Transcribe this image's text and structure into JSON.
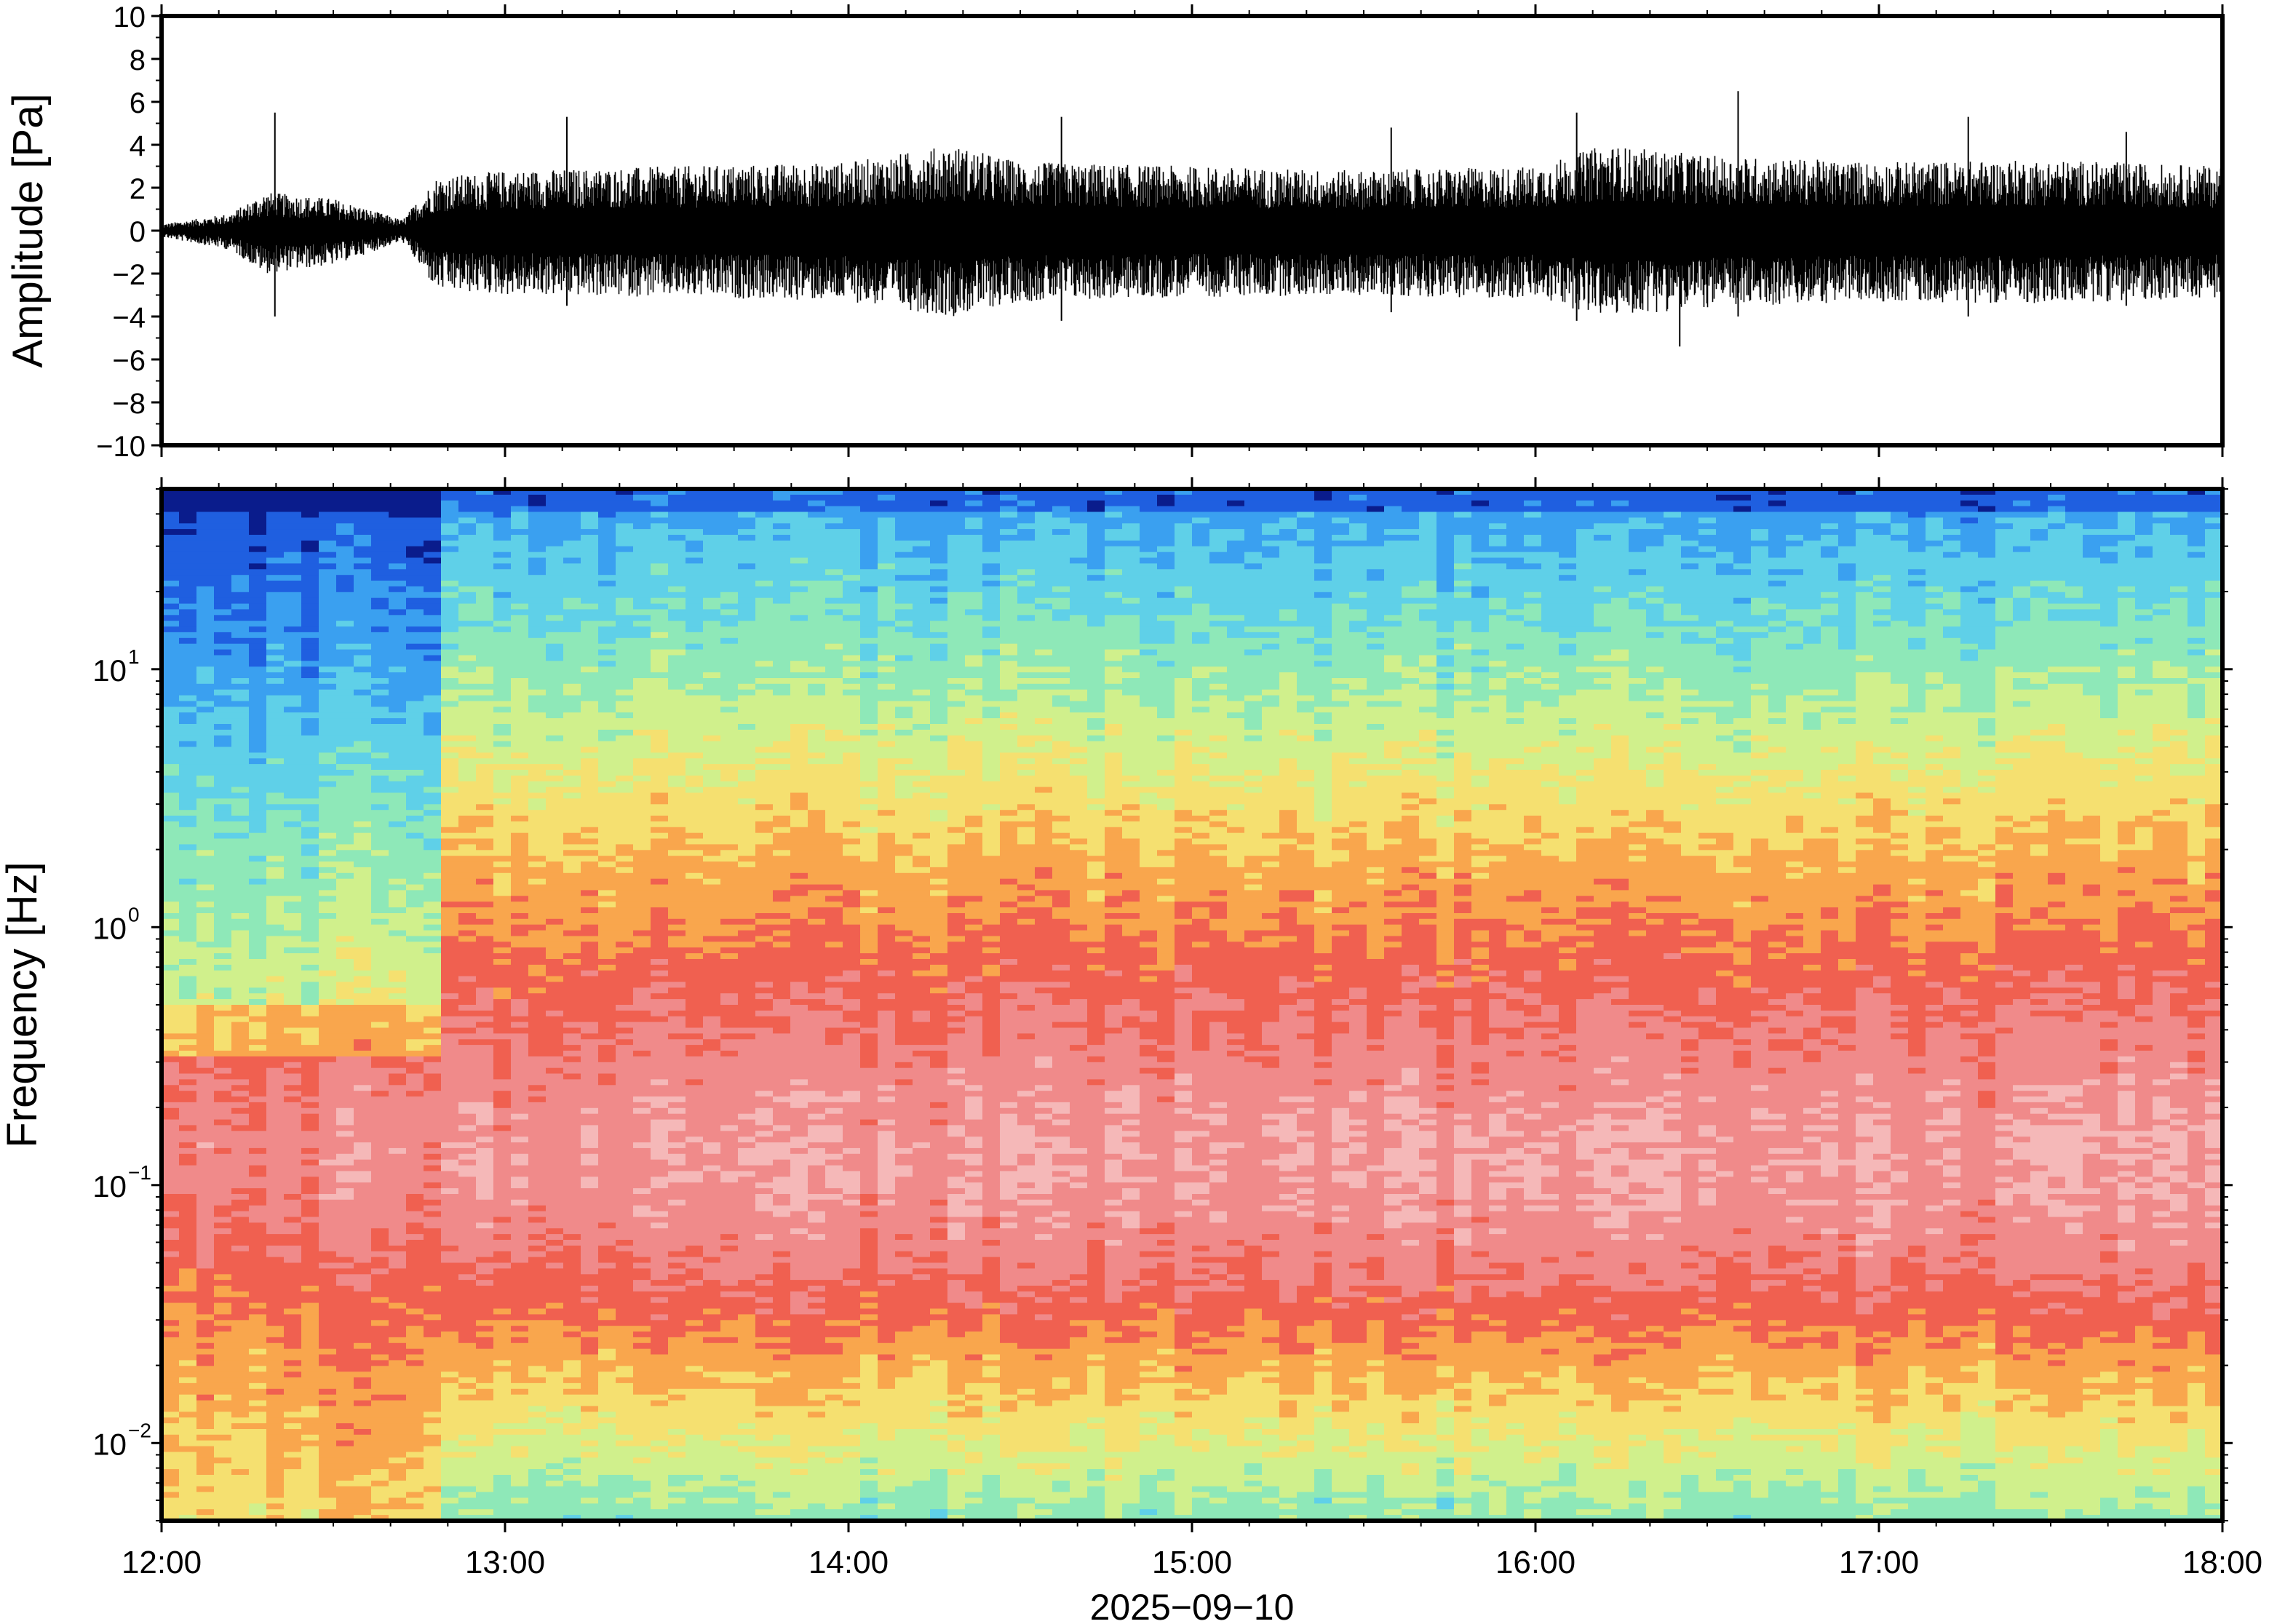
{
  "chart_data": [
    {
      "type": "line",
      "panel": "waveform",
      "ylabel": "Amplitude [Pa]",
      "ylim": [
        -10,
        10
      ],
      "yticks": [
        -10,
        -8,
        -6,
        -4,
        -2,
        0,
        2,
        4,
        6,
        8,
        10
      ],
      "ytick_labels": [
        "−10",
        "−8",
        "−6",
        "−4",
        "−2",
        "0",
        "2",
        "4",
        "6",
        "8",
        "10"
      ],
      "x_range_hours": [
        12,
        18
      ],
      "envelope": {
        "x_hours": [
          12.0,
          12.2,
          12.3,
          12.5,
          12.7,
          12.8,
          13.0,
          13.5,
          14.0,
          14.3,
          14.5,
          15.0,
          15.5,
          16.0,
          16.2,
          16.5,
          17.0,
          17.5,
          18.0
        ],
        "upper_pa": [
          0.3,
          0.8,
          1.8,
          1.5,
          0.5,
          2.5,
          2.8,
          3.0,
          3.2,
          4.0,
          3.2,
          3.0,
          2.8,
          3.0,
          4.0,
          3.5,
          3.2,
          3.3,
          3.0
        ],
        "lower_pa": [
          -0.3,
          -0.9,
          -2.0,
          -1.6,
          -0.5,
          -2.8,
          -3.0,
          -3.1,
          -3.3,
          -4.0,
          -3.3,
          -3.1,
          -3.0,
          -3.2,
          -4.0,
          -3.6,
          -3.3,
          -3.4,
          -3.1
        ]
      },
      "spikes": [
        {
          "x_hours": 12.33,
          "upper_pa": 5.5,
          "lower_pa": -4.0
        },
        {
          "x_hours": 13.18,
          "upper_pa": 5.3,
          "lower_pa": -3.5
        },
        {
          "x_hours": 14.62,
          "upper_pa": 5.3,
          "lower_pa": -4.2
        },
        {
          "x_hours": 15.58,
          "upper_pa": 4.8,
          "lower_pa": -3.8
        },
        {
          "x_hours": 16.12,
          "upper_pa": 5.5,
          "lower_pa": -4.2
        },
        {
          "x_hours": 16.42,
          "upper_pa": 3.5,
          "lower_pa": -5.4
        },
        {
          "x_hours": 16.59,
          "upper_pa": 6.5,
          "lower_pa": -4.0
        },
        {
          "x_hours": 17.26,
          "upper_pa": 5.3,
          "lower_pa": -4.0
        },
        {
          "x_hours": 17.72,
          "upper_pa": 4.6,
          "lower_pa": -3.5
        }
      ]
    },
    {
      "type": "heatmap",
      "panel": "spectrogram",
      "ylabel": "Frequency [Hz]",
      "yscale": "log",
      "ylim_hz": [
        0.005,
        50
      ],
      "yticks_hz": [
        0.01,
        0.1,
        1,
        10
      ],
      "ytick_labels": [
        {
          "base": "10",
          "exp": "−2"
        },
        {
          "base": "10",
          "exp": "−1"
        },
        {
          "base": "10",
          "exp": "0"
        },
        {
          "base": "10",
          "exp": "1"
        }
      ],
      "colormap": [
        "#0a1c8c",
        "#1f5fe0",
        "#3aa0f0",
        "#5fd0e8",
        "#8ee8b8",
        "#d0f08c",
        "#f5e070",
        "#f9a64d",
        "#f06050",
        "#f08a8a",
        "#f5b8b8"
      ],
      "columns": [
        {
          "x_hours": 12.0,
          "profile": [
            0.4,
            0.5,
            0.6,
            0.6,
            0.5,
            0.3,
            0.2
          ]
        },
        {
          "x_hours": 12.8,
          "profile": [
            0.5,
            0.6,
            0.8,
            0.85,
            0.7,
            0.55,
            0.4
          ]
        },
        {
          "x_hours": 14.0,
          "profile": [
            0.5,
            0.65,
            0.82,
            0.9,
            0.75,
            0.6,
            0.45
          ]
        },
        {
          "x_hours": 16.0,
          "profile": [
            0.45,
            0.6,
            0.82,
            0.9,
            0.78,
            0.6,
            0.45
          ]
        },
        {
          "x_hours": 18.0,
          "profile": [
            0.45,
            0.62,
            0.82,
            0.9,
            0.75,
            0.6,
            0.45
          ]
        }
      ]
    }
  ],
  "x_axis": {
    "tick_labels": [
      "12:00",
      "13:00",
      "14:00",
      "15:00",
      "16:00",
      "17:00",
      "18:00"
    ],
    "tick_hours": [
      12,
      13,
      14,
      15,
      16,
      17,
      18
    ],
    "date_label": "2025−09−10"
  }
}
